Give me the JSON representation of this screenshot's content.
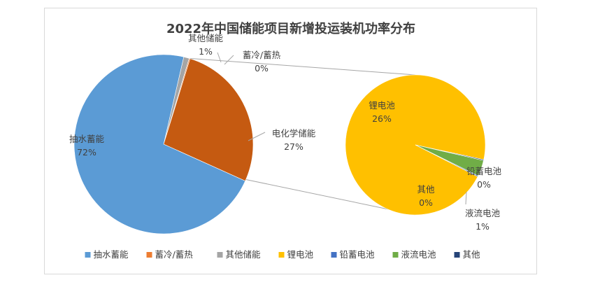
{
  "chart_data": {
    "type": "pie",
    "subtype": "pie-of-pie",
    "title": "2022年中国储能项目新增投运装机功率分布",
    "main_slices": [
      {
        "label": "抽水蓄能",
        "value": 72,
        "percent_text": "72%",
        "color": "#5b9bd5"
      },
      {
        "label": "电化学储能",
        "value": 27,
        "percent_text": "27%",
        "color": "#c55a11"
      },
      {
        "label": "其他储能",
        "value": 1,
        "percent_text": "1%",
        "color": "#a5a5a5"
      },
      {
        "label": "蓄冷/蓄热",
        "value": 0,
        "percent_text": "0%",
        "color": "#ed7d31"
      }
    ],
    "secondary_slices": [
      {
        "label": "锂电池",
        "value": 26,
        "percent_text": "26%",
        "color": "#ffc000"
      },
      {
        "label": "铅蓄电池",
        "value": 0,
        "percent_text": "0%",
        "color": "#4472c4"
      },
      {
        "label": "液流电池",
        "value": 1,
        "percent_text": "1%",
        "color": "#70ad47"
      },
      {
        "label": "其他",
        "value": 0,
        "percent_text": "0%",
        "color": "#264478"
      }
    ],
    "legend": {
      "placement": "bottom",
      "entries": [
        {
          "label": "抽水蓄能",
          "color": "#5b9bd5"
        },
        {
          "label": "蓄冷/蓄热",
          "color": "#ed7d31"
        },
        {
          "label": "其他储能",
          "color": "#a5a5a5"
        },
        {
          "label": "锂电池",
          "color": "#ffc000"
        },
        {
          "label": "铅蓄电池",
          "color": "#4472c4"
        },
        {
          "label": "液流电池",
          "color": "#70ad47"
        },
        {
          "label": "其他",
          "color": "#264478"
        }
      ]
    }
  }
}
